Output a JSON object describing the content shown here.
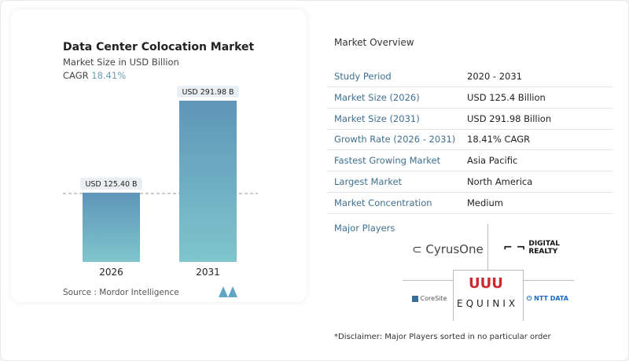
{
  "chart_data": {
    "type": "bar",
    "title": "Data Center Colocation Market",
    "subtitle": "Market Size in USD Billion",
    "cagr_label": "CAGR",
    "cagr_value": "18.41%",
    "categories": [
      "2026",
      "2031"
    ],
    "values": [
      125.4,
      291.98
    ],
    "data_labels": [
      "USD 125.40 B",
      "USD 291.98 B"
    ],
    "bar_color_top": "#5f95b9",
    "bar_color_bottom": "#7fc5cc",
    "source": "Source :  Mordor Intelligence",
    "grid": false
  },
  "overview": {
    "title": "Market Overview",
    "rows": [
      {
        "label": "Study Period",
        "value": "2020 - 2031"
      },
      {
        "label": "Market Size (2026)",
        "value": "USD 125.4 Billion"
      },
      {
        "label": "Market Size (2031)",
        "value": "USD 291.98 Billion"
      },
      {
        "label": "Growth Rate (2026 - 2031)",
        "value": "18.41% CAGR"
      },
      {
        "label": "Fastest Growing Market",
        "value": "Asia Pacific"
      },
      {
        "label": "Largest Market",
        "value": "North America"
      },
      {
        "label": "Market Concentration",
        "value": "Medium"
      }
    ],
    "players_title": "Major Players",
    "players": [
      "CyrusOne",
      "DIGITAL REALTY",
      "CoreSite",
      "EQUINIX",
      "NTT DATA"
    ],
    "disclaimer": "*Disclaimer: Major Players sorted in no particular order"
  }
}
